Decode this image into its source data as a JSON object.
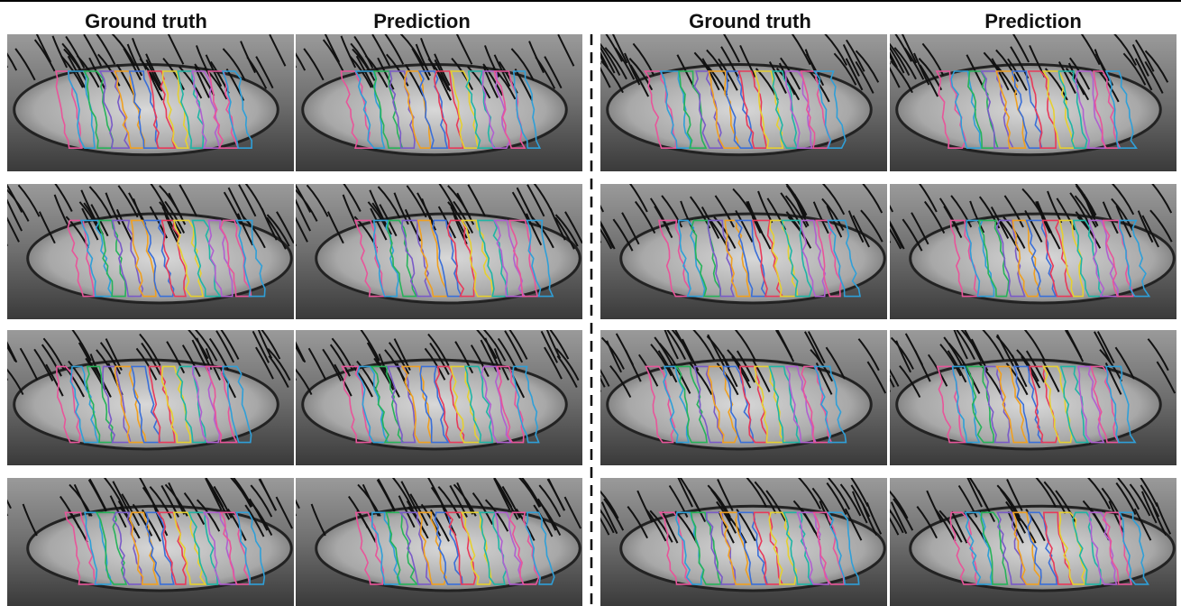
{
  "left": {
    "headers": [
      "Ground truth",
      "Prediction"
    ]
  },
  "right": {
    "headers": [
      "Ground truth",
      "Prediction"
    ]
  }
}
